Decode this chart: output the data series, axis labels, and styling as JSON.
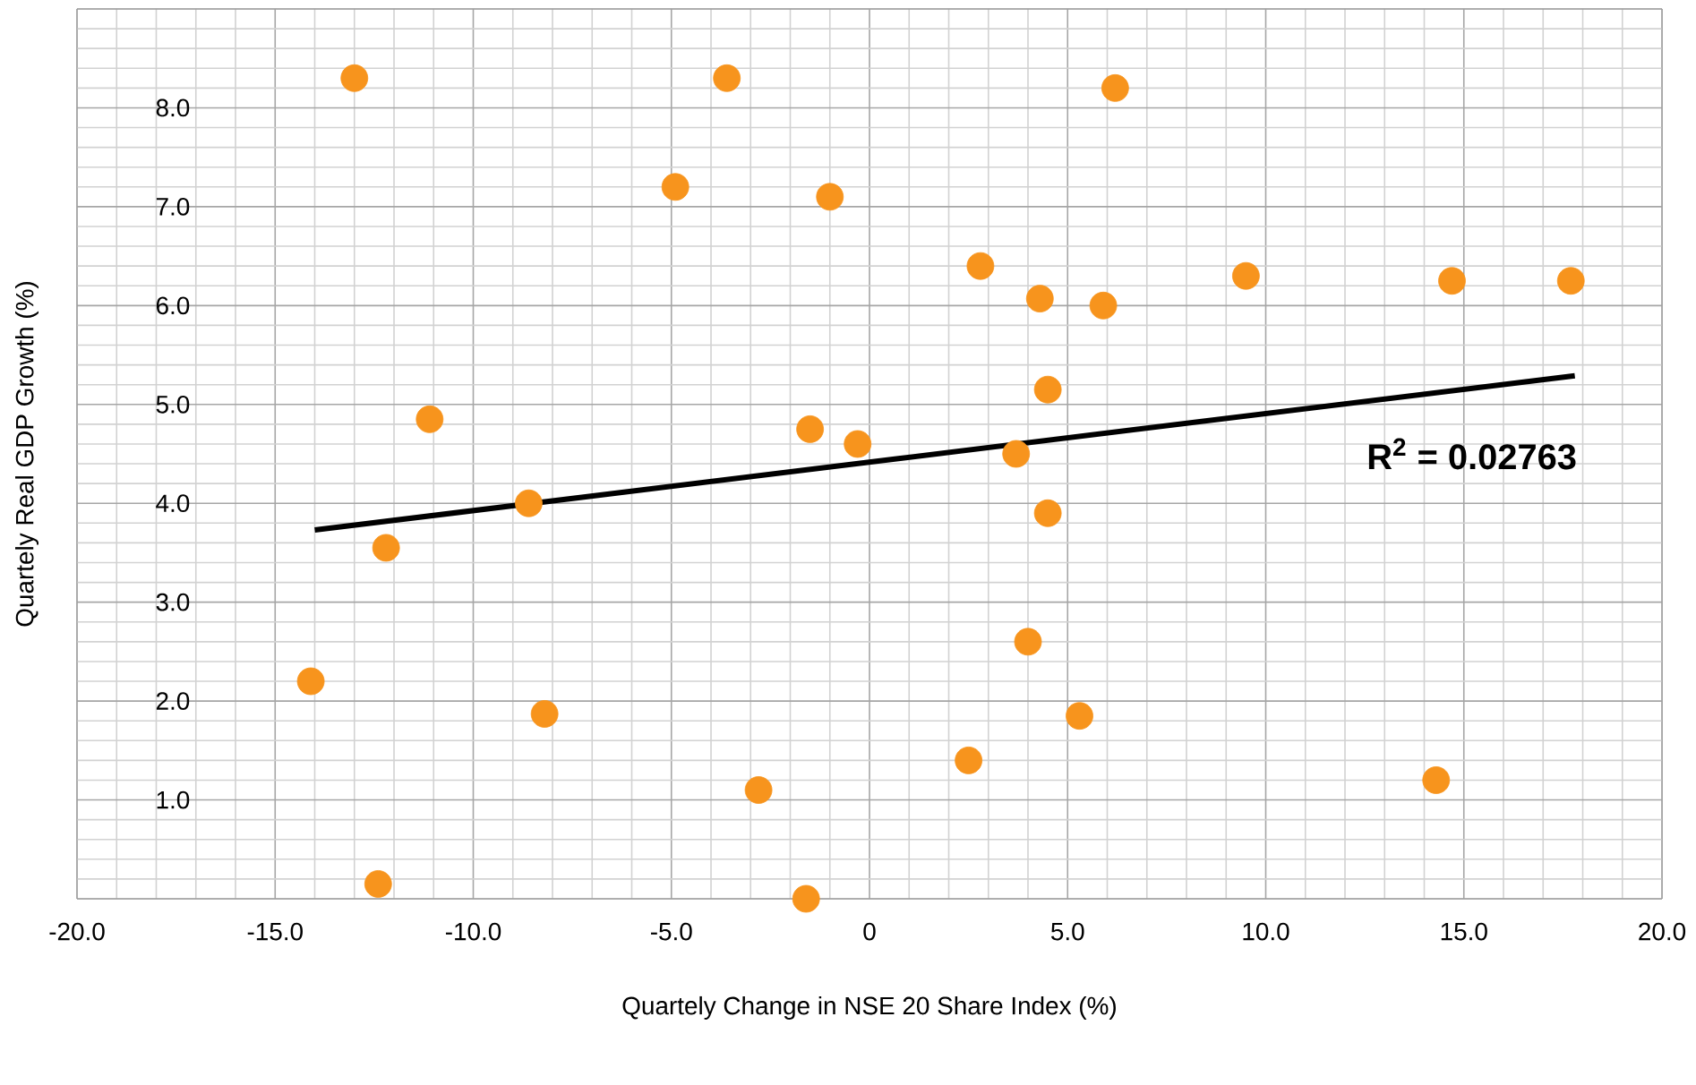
{
  "chart_data": {
    "type": "scatter",
    "xlabel": "Quartely Change in NSE 20 Share Index (%)",
    "ylabel": "Quartely Real GDP Growth (%)",
    "xlim": [
      -20,
      20
    ],
    "ylim": [
      0,
      9
    ],
    "xticks": [
      {
        "value": -20,
        "label": "-20.0"
      },
      {
        "value": -15,
        "label": "-15.0"
      },
      {
        "value": -10,
        "label": "-10.0"
      },
      {
        "value": -5,
        "label": "-5.0"
      },
      0,
      {
        "value": 5,
        "label": "5.0"
      },
      {
        "value": 10,
        "label": "10.0"
      },
      {
        "value": 15,
        "label": "15.0"
      },
      {
        "value": 20,
        "label": "20.0"
      }
    ],
    "yticks": [
      {
        "value": 0,
        "label": null
      },
      {
        "value": 1,
        "label": "1.0"
      },
      {
        "value": 2,
        "label": "2.0"
      },
      {
        "value": 3,
        "label": "3.0"
      },
      {
        "value": 4,
        "label": "4.0"
      },
      {
        "value": 5,
        "label": "5.0"
      },
      {
        "value": 6,
        "label": "6.0"
      },
      {
        "value": 7,
        "label": "7.0"
      },
      {
        "value": 8,
        "label": "8.0"
      },
      {
        "value": 9,
        "label": null
      }
    ],
    "grid": true,
    "marker": "circle",
    "series": [
      {
        "color": "#f7941d",
        "x": [
          -13.0,
          -3.6,
          6.2,
          -4.9,
          -1.0,
          2.8,
          9.5,
          14.7,
          17.7,
          4.3,
          5.9,
          4.5,
          -11.1,
          -1.5,
          -0.3,
          3.7,
          -8.6,
          4.5,
          -12.2,
          4.0,
          -14.1,
          -8.2,
          5.3,
          2.5,
          -2.8,
          14.3,
          -12.4,
          -1.6
        ],
        "values": [
          8.3,
          8.3,
          8.2,
          7.2,
          7.1,
          6.4,
          6.3,
          6.25,
          6.25,
          6.07,
          6.0,
          5.15,
          4.85,
          4.75,
          4.6,
          4.5,
          4.0,
          3.9,
          3.55,
          2.6,
          2.2,
          1.87,
          1.85,
          1.4,
          1.1,
          1.2,
          0.15,
          0.0
        ]
      },
      {
        "type": "line",
        "marker": "none",
        "color": "#000000",
        "x": [
          -14.0,
          17.8
        ],
        "values": [
          3.73,
          5.29
        ]
      }
    ],
    "annotations": [
      "R$^{2}$ = 0.02763"
    ]
  }
}
